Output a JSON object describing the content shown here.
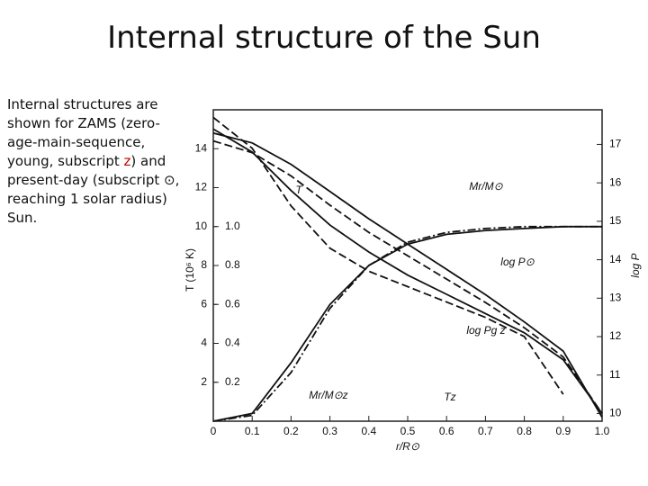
{
  "title": "Internal structure of the Sun",
  "text": [
    "Internal structures are shown for ZAMS (zero-age-main-sequence, young, subscript ",
    "z",
    ") and present-day (subscript ⊙, reaching 1 solar radius) Sun."
  ],
  "chart_data": {
    "type": "line",
    "xlabel": "r/R⊙",
    "ylabel": "T (10⁶ K)",
    "y2label": "log P",
    "x": [
      0,
      0.1,
      0.2,
      0.3,
      0.4,
      0.5,
      0.6,
      0.7,
      0.8,
      0.9,
      1.0
    ],
    "xlim": [
      0,
      1.0
    ],
    "xticks": [
      0,
      0.1,
      0.2,
      0.3,
      0.4,
      0.5,
      0.6,
      0.7,
      0.8,
      0.9,
      {
        "value": 1.0,
        "label": "1.0"
      }
    ],
    "ylim": [
      0,
      16
    ],
    "yticks": [
      2,
      4,
      6,
      8,
      10,
      12,
      14
    ],
    "mlim": [
      0,
      1.6
    ],
    "mticks": [
      0.2,
      0.4,
      0.6,
      0.8,
      {
        "value": 1.0,
        "label": "1.0"
      }
    ],
    "y2lim": [
      9.8,
      17.9
    ],
    "y2ticks": [
      10,
      11,
      12,
      13,
      14,
      15,
      16,
      17
    ],
    "series": [
      {
        "name": "T",
        "color": "#111111",
        "dash": "solid",
        "axis": "y",
        "values": [
          14.8,
          14.3,
          13.2,
          11.8,
          10.4,
          9.1,
          7.8,
          6.5,
          5.1,
          3.6,
          0.2
        ]
      },
      {
        "name": "Tz",
        "color": "#111111",
        "dash": "dashed",
        "axis": "y",
        "values": [
          14.4,
          13.8,
          12.6,
          11.1,
          9.7,
          8.5,
          7.3,
          6.1,
          4.8,
          3.3,
          0.4
        ]
      },
      {
        "name": "log P⊙",
        "color": "#111111",
        "dash": "solid",
        "axis": "y2",
        "values": [
          17.4,
          16.8,
          15.8,
          14.9,
          14.2,
          13.6,
          13.1,
          12.6,
          12.1,
          11.4,
          10.0
        ]
      },
      {
        "name": "log Pg z",
        "color": "#111111",
        "dash": "dashed",
        "axis": "y2",
        "values": [
          17.7,
          16.9,
          15.4,
          14.3,
          13.7,
          13.3,
          12.9,
          12.5,
          12.0,
          10.5,
          null
        ]
      },
      {
        "name": "Mr/M⊙",
        "color": "#111111",
        "dash": "solid",
        "axis": "m",
        "values": [
          0,
          0.04,
          0.3,
          0.6,
          0.8,
          0.91,
          0.96,
          0.98,
          0.99,
          1.0,
          1.0
        ]
      },
      {
        "name": "Mr/M⊙z",
        "color": "#111111",
        "dash": "dashdot",
        "axis": "m",
        "values": [
          0,
          0.03,
          0.25,
          0.58,
          0.8,
          0.92,
          0.97,
          0.99,
          1.0,
          1.0,
          1.0
        ]
      }
    ]
  }
}
